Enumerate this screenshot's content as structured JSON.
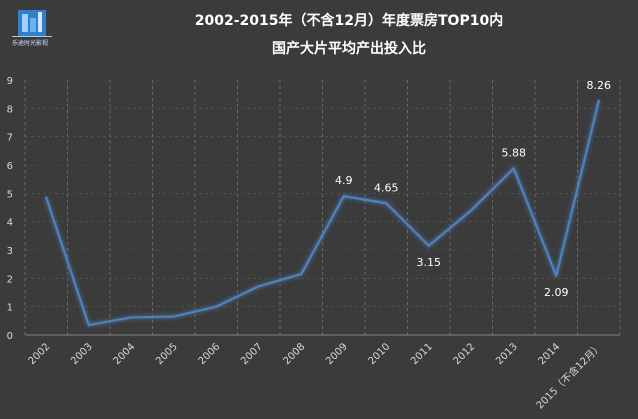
{
  "chart_data": {
    "type": "line",
    "title": "2002-2015年（不含12月）年度票房TOP10内",
    "subtitle": "国产大片平均产出投入比",
    "categories": [
      "2002",
      "2003",
      "2004",
      "2005",
      "2006",
      "2007",
      "2008",
      "2009",
      "2010",
      "2011",
      "2012",
      "2013",
      "2014",
      "2015（不含12月）"
    ],
    "series": [
      {
        "values": [
          4.85,
          0.35,
          0.62,
          0.65,
          1.0,
          1.72,
          2.15,
          4.9,
          4.65,
          3.15,
          4.4,
          5.88,
          2.09,
          8.26
        ]
      }
    ],
    "data_labels": [
      {
        "index": 7,
        "text": "4.9",
        "position": "above"
      },
      {
        "index": 8,
        "text": "4.65",
        "position": "above"
      },
      {
        "index": 9,
        "text": "3.15",
        "position": "below"
      },
      {
        "index": 11,
        "text": "5.88",
        "position": "above"
      },
      {
        "index": 12,
        "text": "2.09",
        "position": "below"
      },
      {
        "index": 13,
        "text": "8.26",
        "position": "above"
      }
    ],
    "yticks": [
      "0",
      "1",
      "2",
      "3",
      "4",
      "5",
      "6",
      "7",
      "8",
      "9"
    ],
    "ylim": [
      0,
      9
    ],
    "grid": "vertical-dashed",
    "line_color": "#4f81bd",
    "background": "#3b3b3b"
  },
  "logo": {
    "icon": "building-logo-icon",
    "caption": "乐途时光影视"
  }
}
